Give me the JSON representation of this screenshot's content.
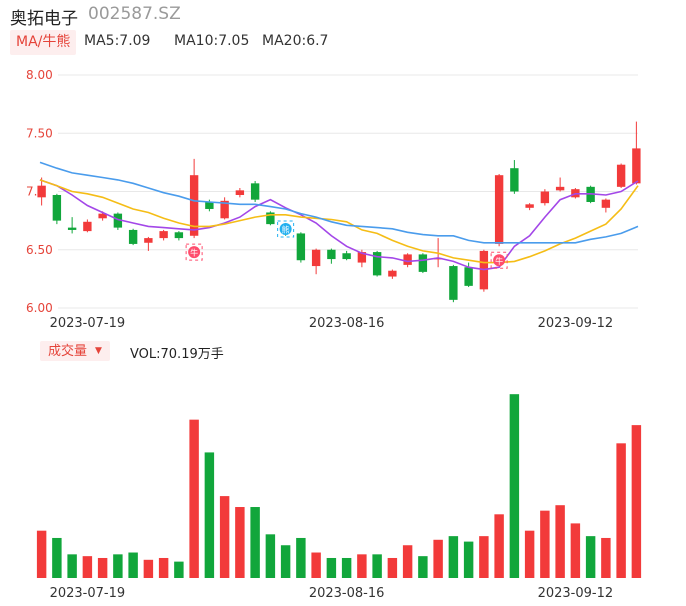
{
  "header": {
    "name": "奥拓电子",
    "code": "002587.SZ"
  },
  "ma_legend": {
    "toggle": "MA/牛熊",
    "ma5": "MA5:7.09",
    "ma10": "MA10:7.05",
    "ma20": "MA20:6.7"
  },
  "volume_legend": {
    "toggle": "成交量",
    "value": "VOL:70.19万手"
  },
  "colors": {
    "up": "#f23a3a",
    "down": "#11a63b",
    "ma5": "#a347e8",
    "ma10": "#f5bd16",
    "ma20": "#4a9cec",
    "grid": "#e8e8e8",
    "axis_text": "#e5443a",
    "signal_bull": "#ff4d6d",
    "signal_bear": "#22b0f0"
  },
  "chart_data": [
    {
      "type": "candlestick",
      "title": "",
      "ylim": [
        6.0,
        8.0
      ],
      "yticks": [
        8.0,
        7.5,
        7.0,
        6.5,
        6.0
      ],
      "ytick_labels": [
        "8.00",
        "7.50",
        "7.0",
        "6.50",
        "6.00"
      ],
      "x_tick_labels": [
        {
          "index": 3,
          "label": "2023-07-19"
        },
        {
          "index": 20,
          "label": "2023-08-16"
        },
        {
          "index": 35,
          "label": "2023-09-12"
        }
      ],
      "grid": true,
      "candles": [
        {
          "o": 6.95,
          "c": 7.05,
          "h": 7.12,
          "l": 6.88
        },
        {
          "o": 6.97,
          "c": 6.75,
          "h": 6.98,
          "l": 6.72
        },
        {
          "o": 6.69,
          "c": 6.67,
          "h": 6.78,
          "l": 6.64
        },
        {
          "o": 6.66,
          "c": 6.74,
          "h": 6.76,
          "l": 6.65
        },
        {
          "o": 6.77,
          "c": 6.81,
          "h": 6.83,
          "l": 6.75
        },
        {
          "o": 6.81,
          "c": 6.69,
          "h": 6.82,
          "l": 6.67
        },
        {
          "o": 6.67,
          "c": 6.55,
          "h": 6.68,
          "l": 6.54
        },
        {
          "o": 6.56,
          "c": 6.6,
          "h": 6.61,
          "l": 6.49
        },
        {
          "o": 6.6,
          "c": 6.66,
          "h": 6.67,
          "l": 6.58
        },
        {
          "o": 6.65,
          "c": 6.6,
          "h": 6.66,
          "l": 6.58
        },
        {
          "o": 6.62,
          "c": 7.14,
          "h": 7.28,
          "l": 6.6
        },
        {
          "o": 6.91,
          "c": 6.85,
          "h": 6.93,
          "l": 6.83
        },
        {
          "o": 6.77,
          "c": 6.92,
          "h": 6.95,
          "l": 6.76
        },
        {
          "o": 6.97,
          "c": 7.01,
          "h": 7.03,
          "l": 6.95
        },
        {
          "o": 7.07,
          "c": 6.93,
          "h": 7.09,
          "l": 6.91
        },
        {
          "o": 6.82,
          "c": 6.72,
          "h": 6.83,
          "l": 6.71
        },
        {
          "o": 6.7,
          "c": 6.64,
          "h": 6.73,
          "l": 6.62
        },
        {
          "o": 6.64,
          "c": 6.41,
          "h": 6.65,
          "l": 6.39
        },
        {
          "o": 6.36,
          "c": 6.5,
          "h": 6.51,
          "l": 6.29
        },
        {
          "o": 6.5,
          "c": 6.42,
          "h": 6.51,
          "l": 6.38
        },
        {
          "o": 6.47,
          "c": 6.42,
          "h": 6.49,
          "l": 6.41
        },
        {
          "o": 6.39,
          "c": 6.48,
          "h": 6.5,
          "l": 6.35
        },
        {
          "o": 6.48,
          "c": 6.28,
          "h": 6.49,
          "l": 6.27
        },
        {
          "o": 6.27,
          "c": 6.32,
          "h": 6.33,
          "l": 6.25
        },
        {
          "o": 6.37,
          "c": 6.46,
          "h": 6.47,
          "l": 6.35
        },
        {
          "o": 6.46,
          "c": 6.31,
          "h": 6.47,
          "l": 6.3
        },
        {
          "o": 6.42,
          "c": 6.43,
          "h": 6.6,
          "l": 6.35
        },
        {
          "o": 6.36,
          "c": 6.07,
          "h": 6.37,
          "l": 6.05
        },
        {
          "o": 6.35,
          "c": 6.19,
          "h": 6.39,
          "l": 6.18
        },
        {
          "o": 6.16,
          "c": 6.49,
          "h": 6.5,
          "l": 6.14
        },
        {
          "o": 6.55,
          "c": 7.14,
          "h": 7.15,
          "l": 6.53
        },
        {
          "o": 7.2,
          "c": 7.0,
          "h": 7.27,
          "l": 6.98
        },
        {
          "o": 6.86,
          "c": 6.89,
          "h": 6.9,
          "l": 6.84
        },
        {
          "o": 6.9,
          "c": 7.0,
          "h": 7.02,
          "l": 6.88
        },
        {
          "o": 7.01,
          "c": 7.04,
          "h": 7.12,
          "l": 7.0
        },
        {
          "o": 6.95,
          "c": 7.02,
          "h": 7.03,
          "l": 6.94
        },
        {
          "o": 7.04,
          "c": 6.91,
          "h": 7.05,
          "l": 6.9
        },
        {
          "o": 6.86,
          "c": 6.93,
          "h": 6.94,
          "l": 6.82
        },
        {
          "o": 7.04,
          "c": 7.23,
          "h": 7.24,
          "l": 7.03
        },
        {
          "o": 7.07,
          "c": 7.37,
          "h": 7.6,
          "l": 7.06
        }
      ],
      "series": [
        {
          "name": "MA5",
          "values": [
            7.1,
            7.05,
            6.97,
            6.88,
            6.82,
            6.76,
            6.73,
            6.7,
            6.69,
            6.68,
            6.67,
            6.69,
            6.73,
            6.78,
            6.87,
            6.93,
            6.86,
            6.8,
            6.73,
            6.62,
            6.53,
            6.47,
            6.44,
            6.43,
            6.4,
            6.41,
            6.43,
            6.4,
            6.35,
            6.33,
            6.35,
            6.53,
            6.62,
            6.78,
            6.93,
            6.98,
            6.98,
            6.97,
            7.0,
            7.09
          ]
        },
        {
          "name": "MA10",
          "values": [
            7.1,
            7.05,
            7.0,
            6.98,
            6.95,
            6.9,
            6.85,
            6.82,
            6.77,
            6.73,
            6.7,
            6.7,
            6.72,
            6.75,
            6.78,
            6.8,
            6.8,
            6.78,
            6.77,
            6.76,
            6.74,
            6.67,
            6.64,
            6.58,
            6.53,
            6.49,
            6.47,
            6.43,
            6.41,
            6.39,
            6.39,
            6.4,
            6.44,
            6.49,
            6.55,
            6.6,
            6.66,
            6.72,
            6.85,
            7.05
          ]
        },
        {
          "name": "MA20",
          "values": [
            7.25,
            7.2,
            7.16,
            7.14,
            7.12,
            7.1,
            7.07,
            7.03,
            6.99,
            6.96,
            6.92,
            6.91,
            6.9,
            6.89,
            6.89,
            6.87,
            6.85,
            6.81,
            6.78,
            6.74,
            6.71,
            6.7,
            6.69,
            6.68,
            6.65,
            6.63,
            6.62,
            6.62,
            6.58,
            6.56,
            6.56,
            6.56,
            6.56,
            6.56,
            6.56,
            6.56,
            6.59,
            6.61,
            6.64,
            6.7
          ]
        }
      ],
      "signals": [
        {
          "index": 10,
          "type": "bull",
          "text": "牛"
        },
        {
          "index": 16,
          "type": "bear",
          "text": "熊"
        },
        {
          "index": 30,
          "type": "bull",
          "text": "牛"
        }
      ]
    },
    {
      "type": "bar",
      "title": "",
      "ylim": [
        0,
        100
      ],
      "x_tick_labels": [
        {
          "index": 3,
          "label": "2023-07-19"
        },
        {
          "index": 20,
          "label": "2023-08-16"
        },
        {
          "index": 35,
          "label": "2023-09-12"
        }
      ],
      "values": [
        26,
        22,
        13,
        12,
        11,
        13,
        14,
        10,
        11,
        9,
        87,
        69,
        45,
        39,
        39,
        24,
        18,
        22,
        14,
        11,
        11,
        13,
        13,
        11,
        18,
        12,
        21,
        23,
        20,
        23,
        35,
        101,
        26,
        37,
        40,
        30,
        23,
        22,
        74,
        84
      ],
      "colors_by_candle": true
    }
  ]
}
